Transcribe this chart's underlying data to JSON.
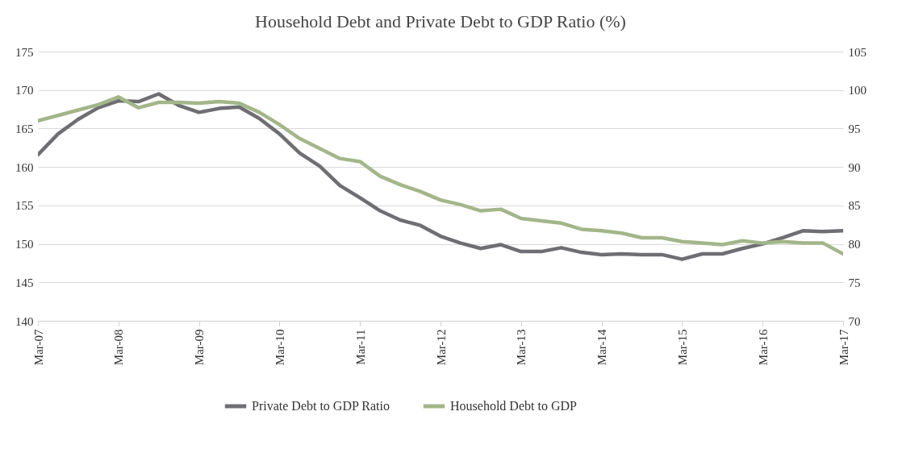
{
  "chart_data": {
    "type": "line",
    "title": "Household Debt and Private Debt to GDP Ratio (%)",
    "categories": [
      "Mar-07",
      null,
      null,
      null,
      "Mar-08",
      null,
      null,
      null,
      "Mar-09",
      null,
      null,
      null,
      "Mar-10",
      null,
      null,
      null,
      "Mar-11",
      null,
      null,
      null,
      "Mar-12",
      null,
      null,
      null,
      "Mar-13",
      null,
      null,
      null,
      "Mar-14",
      null,
      null,
      null,
      "Mar-15",
      null,
      null,
      null,
      "Mar-16",
      null,
      null,
      null,
      "Mar-17"
    ],
    "series": [
      {
        "name": "Private Debt to GDP Ratio",
        "color": "#6f6e73",
        "values": [
          161.6,
          164.3,
          166.2,
          167.7,
          168.6,
          168.5,
          169.5,
          168.0,
          167.1,
          167.6,
          167.8,
          166.3,
          164.3,
          161.8,
          160.1,
          157.6,
          156.0,
          154.3,
          153.1,
          152.4,
          151.0,
          150.1,
          149.4,
          149.9,
          149.0,
          149.0,
          149.5,
          148.9,
          148.6,
          148.7,
          148.6,
          148.6,
          148.0,
          148.7,
          148.7,
          149.4,
          150.0,
          150.8,
          151.7,
          151.6,
          151.7
        ]
      },
      {
        "name": "Household Debt to GDP",
        "color": "#a3b68a",
        "axis": "y2",
        "values": [
          96.0,
          96.7,
          97.4,
          98.1,
          99.1,
          97.7,
          98.4,
          98.4,
          98.3,
          98.5,
          98.3,
          97.1,
          95.5,
          93.7,
          92.4,
          91.1,
          90.7,
          88.8,
          87.7,
          86.8,
          85.7,
          85.1,
          84.3,
          84.5,
          83.3,
          83.0,
          82.7,
          81.9,
          81.7,
          81.4,
          80.8,
          80.8,
          80.3,
          80.1,
          79.9,
          80.4,
          80.1,
          80.3,
          80.1,
          80.1,
          78.7
        ]
      }
    ],
    "ylim": [
      140,
      175
    ],
    "yticks": [
      140,
      145,
      150,
      155,
      160,
      165,
      170,
      175
    ],
    "y2lim": [
      70,
      105
    ],
    "y2ticks": [
      70,
      75,
      80,
      85,
      90,
      95,
      100,
      105
    ],
    "grid": "y",
    "legend": "bottom"
  }
}
